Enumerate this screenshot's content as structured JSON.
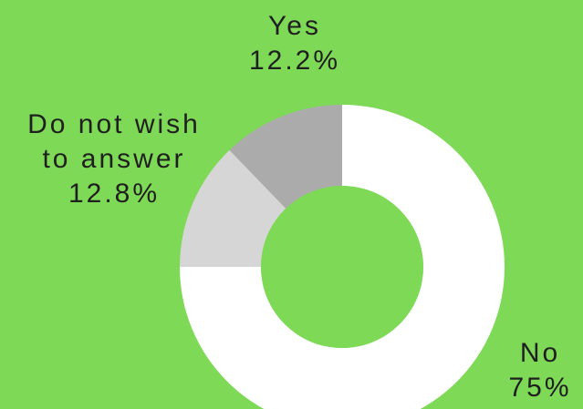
{
  "chart_data": {
    "type": "pie",
    "donut": true,
    "slices": [
      {
        "label": "No",
        "value": 75,
        "value_label": "75%",
        "color": "#FFFFFF"
      },
      {
        "label": "Do not wish to answer",
        "value": 12.8,
        "value_label": "12.8%",
        "color": "#D6D6D6"
      },
      {
        "label": "Yes",
        "value": 12.2,
        "value_label": "12.2%",
        "color": "#ABABAB"
      }
    ],
    "labels": {
      "yes": {
        "line1": "Yes",
        "line2": "12.2%"
      },
      "dnw": {
        "line1": "Do not wish",
        "line2": "to answer",
        "line3": "12.8%"
      },
      "no": {
        "line1": "No",
        "line2": "75%"
      }
    },
    "background_color": "#7ED957",
    "hole_color": "#7ED957"
  }
}
